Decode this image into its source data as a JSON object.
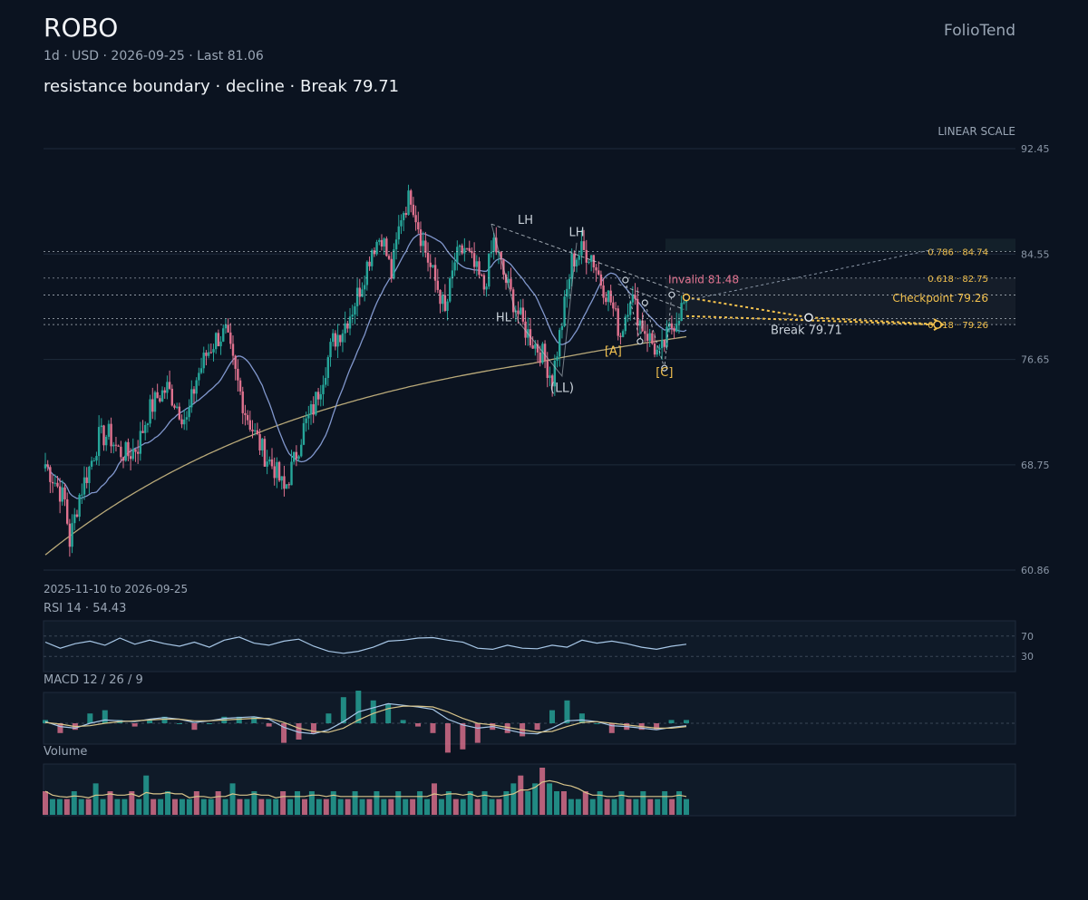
{
  "header": {
    "title": "ROBO",
    "subtitle": "1d · USD · 2026-09-25 · Last 81.06",
    "headline": "resistance boundary · decline · Break 79.71",
    "brand": "FolioTend"
  },
  "colors": {
    "background": "#0b1320",
    "up": "#26a69a",
    "down": "#e0728f",
    "ma_fast": "#8ea6e0",
    "ma_slow": "#d8c48a",
    "accent": "#f2c14e",
    "grid": "#1e2a3a"
  },
  "chart_data": [
    {
      "type": "candlestick",
      "scale_label": "LINEAR SCALE",
      "date_range": "2025-11-10 to 2026-09-25",
      "ylim": [
        60.86,
        92.45
      ],
      "yticks": [
        "92.45",
        "84.55",
        "76.65",
        "68.75",
        "60.86"
      ],
      "last": 81.06,
      "close_path": [
        {
          "i": 0,
          "v": 68.8
        },
        {
          "i": 4,
          "v": 67.5
        },
        {
          "i": 8,
          "v": 66.0
        },
        {
          "i": 10,
          "v": 63.0
        },
        {
          "i": 14,
          "v": 66.5
        },
        {
          "i": 18,
          "v": 68.5
        },
        {
          "i": 22,
          "v": 70.8
        },
        {
          "i": 26,
          "v": 71.0
        },
        {
          "i": 30,
          "v": 69.8
        },
        {
          "i": 34,
          "v": 69.5
        },
        {
          "i": 38,
          "v": 70.2
        },
        {
          "i": 42,
          "v": 72.6
        },
        {
          "i": 46,
          "v": 73.8
        },
        {
          "i": 50,
          "v": 74.5
        },
        {
          "i": 54,
          "v": 73.2
        },
        {
          "i": 58,
          "v": 72.0
        },
        {
          "i": 62,
          "v": 75.2
        },
        {
          "i": 66,
          "v": 77.0
        },
        {
          "i": 70,
          "v": 78.2
        },
        {
          "i": 74,
          "v": 78.6
        },
        {
          "i": 78,
          "v": 75.5
        },
        {
          "i": 82,
          "v": 72.8
        },
        {
          "i": 86,
          "v": 71.0
        },
        {
          "i": 90,
          "v": 69.5
        },
        {
          "i": 94,
          "v": 68.5
        },
        {
          "i": 98,
          "v": 66.8
        },
        {
          "i": 102,
          "v": 69.0
        },
        {
          "i": 106,
          "v": 71.5
        },
        {
          "i": 110,
          "v": 73.0
        },
        {
          "i": 114,
          "v": 75.5
        },
        {
          "i": 118,
          "v": 78.0
        },
        {
          "i": 122,
          "v": 79.0
        },
        {
          "i": 126,
          "v": 80.5
        },
        {
          "i": 130,
          "v": 82.5
        },
        {
          "i": 134,
          "v": 85.0
        },
        {
          "i": 138,
          "v": 86.0
        },
        {
          "i": 142,
          "v": 83.0
        },
        {
          "i": 146,
          "v": 87.5
        },
        {
          "i": 150,
          "v": 89.0
        },
        {
          "i": 154,
          "v": 86.0
        },
        {
          "i": 158,
          "v": 83.5
        },
        {
          "i": 162,
          "v": 81.5
        },
        {
          "i": 164,
          "v": 80.0
        },
        {
          "i": 168,
          "v": 84.0
        },
        {
          "i": 172,
          "v": 85.0
        },
        {
          "i": 176,
          "v": 83.5
        },
        {
          "i": 180,
          "v": 82.0
        },
        {
          "i": 184,
          "v": 85.5
        },
        {
          "i": 188,
          "v": 83.0
        },
        {
          "i": 192,
          "v": 81.0
        },
        {
          "i": 196,
          "v": 79.2
        },
        {
          "i": 200,
          "v": 78.0
        },
        {
          "i": 204,
          "v": 77.0
        },
        {
          "i": 208,
          "v": 75.2
        },
        {
          "i": 212,
          "v": 79.5
        },
        {
          "i": 216,
          "v": 84.0
        },
        {
          "i": 220,
          "v": 84.8
        },
        {
          "i": 224,
          "v": 84.5
        },
        {
          "i": 228,
          "v": 82.5
        },
        {
          "i": 232,
          "v": 81.0
        },
        {
          "i": 236,
          "v": 78.5
        },
        {
          "i": 240,
          "v": 81.6
        },
        {
          "i": 244,
          "v": 79.5
        },
        {
          "i": 248,
          "v": 78.2
        },
        {
          "i": 252,
          "v": 76.8
        },
        {
          "i": 256,
          "v": 78.8
        },
        {
          "i": 260,
          "v": 80.2
        },
        {
          "i": 263,
          "v": 81.06
        }
      ],
      "levels": [
        {
          "label": "0.786 · 84.74",
          "value": 84.74
        },
        {
          "label": "0.618 · 82.75",
          "value": 82.75
        },
        {
          "label": "Invalid 81.48",
          "value": 81.48
        },
        {
          "label": "Checkpoint 79.26",
          "value": 79.26
        },
        {
          "label": "0.618 · 79.26",
          "value": 79.26
        },
        {
          "label": "Break 79.71",
          "value": 79.71
        }
      ],
      "annotations": [
        {
          "label": "LH",
          "i": 197,
          "v": 86.8
        },
        {
          "label": "LH",
          "i": 218,
          "v": 85.9
        },
        {
          "label": "HL",
          "i": 188,
          "v": 79.5
        },
        {
          "label": "(LL)",
          "i": 212,
          "v": 74.2
        },
        {
          "label": "[A]",
          "i": 233,
          "v": 77.0
        },
        {
          "label": "[C]",
          "i": 254,
          "v": 75.4
        }
      ]
    },
    {
      "type": "line",
      "label": "RSI 14 · 54.43",
      "ylim": [
        0,
        100
      ],
      "yticks": [
        "70",
        "30"
      ],
      "values": [
        58,
        46,
        55,
        60,
        52,
        66,
        54,
        62,
        55,
        50,
        58,
        48,
        62,
        68,
        56,
        52,
        60,
        64,
        50,
        40,
        36,
        40,
        48,
        60,
        62,
        66,
        67,
        62,
        58,
        46,
        44,
        52,
        46,
        45,
        52,
        48,
        62,
        56,
        60,
        55,
        48,
        44,
        50,
        54
      ]
    },
    {
      "type": "line",
      "label": "MACD 12 / 26 / 9",
      "macd": [
        0.2,
        -0.4,
        -0.6,
        0.0,
        0.4,
        0.3,
        0.2,
        0.5,
        0.7,
        0.5,
        0.1,
        0.3,
        0.6,
        0.7,
        0.8,
        0.5,
        -0.5,
        -1.1,
        -1.3,
        -0.8,
        0.2,
        1.4,
        1.9,
        2.4,
        2.2,
        2.0,
        1.7,
        0.5,
        -0.2,
        -0.6,
        -0.4,
        -0.8,
        -1.2,
        -1.3,
        -0.6,
        0.3,
        0.4,
        0.2,
        -0.3,
        -0.4,
        -0.6,
        -0.8,
        -0.5,
        -0.3
      ],
      "signal": [
        0.1,
        -0.1,
        -0.4,
        -0.3,
        0.0,
        0.2,
        0.3,
        0.4,
        0.5,
        0.5,
        0.3,
        0.3,
        0.4,
        0.5,
        0.6,
        0.6,
        0.1,
        -0.6,
        -1.0,
        -1.1,
        -0.6,
        0.4,
        1.2,
        1.8,
        2.1,
        2.1,
        2.0,
        1.4,
        0.6,
        0.0,
        -0.2,
        -0.5,
        -0.8,
        -1.1,
        -1.0,
        -0.4,
        0.1,
        0.2,
        0.0,
        -0.2,
        -0.4,
        -0.6,
        -0.6,
        -0.4
      ]
    },
    {
      "type": "bar",
      "label": "Volume",
      "values": [
        3,
        2,
        2,
        2,
        3,
        2,
        2,
        4,
        2,
        3,
        2,
        2,
        3,
        2,
        5,
        2,
        2,
        3,
        2,
        2,
        2,
        3,
        2,
        2,
        3,
        2,
        4,
        2,
        2,
        3,
        2,
        2,
        2,
        3,
        2,
        3,
        2,
        3,
        2,
        2,
        3,
        2,
        2,
        3,
        2,
        2,
        3,
        2,
        2,
        3,
        2,
        2,
        3,
        2,
        4,
        2,
        3,
        2,
        2,
        3,
        2,
        3,
        2,
        2,
        3,
        4,
        5,
        3,
        4,
        6,
        4,
        3,
        3,
        2,
        2,
        3,
        2,
        3,
        2,
        2,
        3,
        2,
        2,
        3,
        2,
        2,
        3,
        2,
        3,
        2
      ]
    }
  ]
}
